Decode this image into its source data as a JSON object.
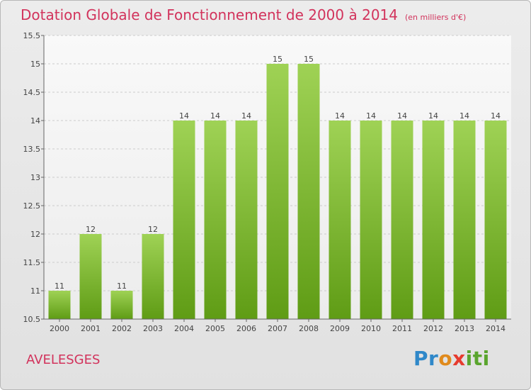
{
  "title": "Dotation Globale de Fonctionnement de 2000 à 2014",
  "subtitle": "(en milliers d'€)",
  "commune": "AVELESGES",
  "logo": {
    "text": "Proxiti",
    "colors": [
      "#2f88c9",
      "#e08a1c",
      "#e63b2e",
      "#5aa52e"
    ]
  },
  "colors": {
    "accent": "#d2335c",
    "bar_top": "#9fd255",
    "bar_bottom": "#5f9c15",
    "grid": "#cccccc"
  },
  "chart_data": {
    "type": "bar",
    "title": "Dotation Globale de Fonctionnement de 2000 à 2014",
    "subtitle": "(en milliers d'€)",
    "xlabel": "",
    "ylabel": "",
    "categories": [
      "2000",
      "2001",
      "2002",
      "2003",
      "2004",
      "2005",
      "2006",
      "2007",
      "2008",
      "2009",
      "2010",
      "2011",
      "2012",
      "2013",
      "2014"
    ],
    "values": [
      11,
      12,
      11,
      12,
      14,
      14,
      14,
      15,
      15,
      14,
      14,
      14,
      14,
      14,
      14
    ],
    "bar_values": [
      11,
      12,
      11,
      12,
      14,
      14,
      14,
      15,
      15,
      14,
      14,
      14,
      14,
      14,
      14
    ],
    "value_labels": [
      "11",
      "12",
      "11",
      "12",
      "14",
      "14",
      "14",
      "15",
      "15",
      "14",
      "14",
      "14",
      "14",
      "14",
      "14"
    ],
    "ylim": [
      10.5,
      15.5
    ],
    "yticks": [
      "10.5",
      "11",
      "11.5",
      "12",
      "12.5",
      "13",
      "13.5",
      "14",
      "14.5",
      "15",
      "15.5"
    ],
    "grid": true,
    "legend": "none"
  }
}
